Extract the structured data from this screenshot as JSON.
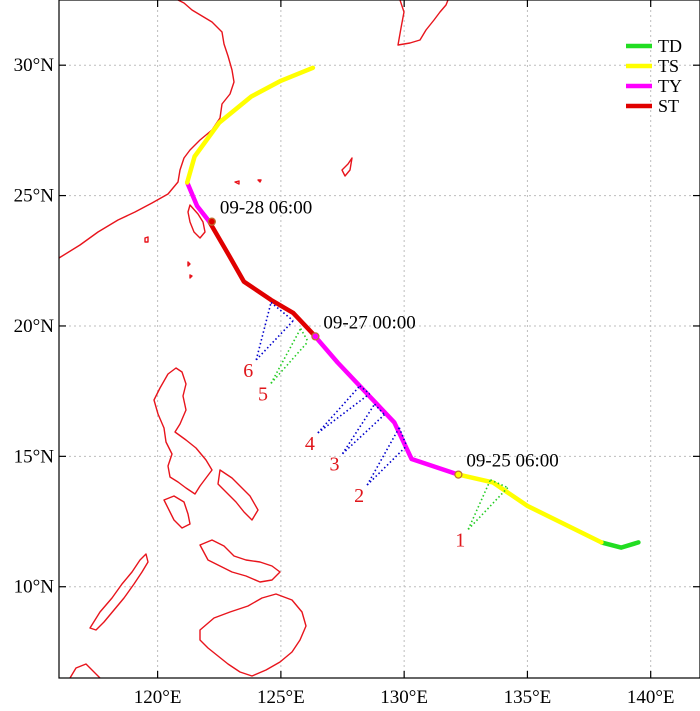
{
  "map": {
    "lon_range": [
      116,
      142
    ],
    "lat_range": [
      6.5,
      32.5
    ],
    "grid": true,
    "x_ticks": [
      {
        "value": 120,
        "label": "120°E"
      },
      {
        "value": 125,
        "label": "125°E"
      },
      {
        "value": 130,
        "label": "130°E"
      },
      {
        "value": 135,
        "label": "135°E"
      },
      {
        "value": 140,
        "label": "140°E"
      }
    ],
    "y_ticks": [
      {
        "value": 10,
        "label": "10°N"
      },
      {
        "value": 15,
        "label": "15°N"
      },
      {
        "value": 20,
        "label": "20°N"
      },
      {
        "value": 25,
        "label": "25°N"
      },
      {
        "value": 30,
        "label": "30°N"
      }
    ],
    "coast_color": "#e8141c"
  },
  "legend": {
    "placement": "top-right",
    "items": [
      {
        "label": "TD",
        "color": "#22dd22"
      },
      {
        "label": "TS",
        "color": "#ffff00"
      },
      {
        "label": "TY",
        "color": "#ff00ff"
      },
      {
        "label": "ST",
        "color": "#e00000"
      }
    ]
  },
  "track": {
    "segments": [
      {
        "category": "TD",
        "color": "#22dd22",
        "points": [
          [
            139.5,
            11.7
          ],
          [
            138.8,
            11.5
          ],
          [
            138.0,
            11.7
          ]
        ]
      },
      {
        "category": "TS",
        "color": "#ffff00",
        "points": [
          [
            138.0,
            11.7
          ],
          [
            136.5,
            12.4
          ],
          [
            135.0,
            13.1
          ],
          [
            133.6,
            14.0
          ],
          [
            132.2,
            14.3
          ]
        ]
      },
      {
        "category": "TY",
        "color": "#ff00ff",
        "points": [
          [
            132.2,
            14.3
          ],
          [
            130.3,
            14.9
          ],
          [
            129.6,
            16.3
          ],
          [
            128.5,
            17.4
          ],
          [
            127.3,
            18.6
          ],
          [
            126.3,
            19.7
          ]
        ]
      },
      {
        "category": "ST",
        "color": "#e00000",
        "points": [
          [
            126.3,
            19.7
          ],
          [
            125.5,
            20.5
          ],
          [
            124.6,
            21.0
          ],
          [
            123.5,
            21.7
          ],
          [
            122.9,
            22.7
          ],
          [
            122.1,
            24.0
          ]
        ]
      },
      {
        "category": "TY",
        "color": "#ff00ff",
        "points": [
          [
            122.1,
            24.0
          ],
          [
            121.6,
            24.6
          ],
          [
            121.2,
            25.5
          ]
        ]
      },
      {
        "category": "TS",
        "color": "#ffff00",
        "points": [
          [
            121.2,
            25.5
          ],
          [
            121.5,
            26.5
          ],
          [
            122.5,
            27.8
          ],
          [
            123.8,
            28.8
          ],
          [
            125.0,
            29.4
          ],
          [
            126.3,
            29.9
          ]
        ]
      }
    ],
    "markers": [
      {
        "lon": 132.2,
        "lat": 14.3,
        "label": "09-25 06:00",
        "color": "#ffff00"
      },
      {
        "lon": 126.4,
        "lat": 19.6,
        "label": "09-27 00:00",
        "color": "#ff00ff"
      },
      {
        "lon": 122.2,
        "lat": 24.0,
        "label": "09-28 06:00",
        "color": "#e00000"
      }
    ]
  },
  "observations": [
    {
      "id": "1",
      "origin": [
        132.6,
        12.2
      ],
      "targets": [
        [
          133.5,
          14.1
        ],
        [
          134.2,
          13.8
        ]
      ],
      "color": "#22cc22"
    },
    {
      "id": "2",
      "origin": [
        128.5,
        13.9
      ],
      "targets": [
        [
          129.8,
          16.1
        ],
        [
          130.1,
          15.4
        ]
      ],
      "color": "#0000cc"
    },
    {
      "id": "3",
      "origin": [
        127.5,
        15.1
      ],
      "targets": [
        [
          128.8,
          17.0
        ],
        [
          129.2,
          16.6
        ]
      ],
      "color": "#0000cc"
    },
    {
      "id": "4",
      "origin": [
        126.5,
        15.9
      ],
      "targets": [
        [
          128.2,
          17.7
        ],
        [
          128.6,
          17.4
        ]
      ],
      "color": "#0000cc"
    },
    {
      "id": "5",
      "origin": [
        124.6,
        17.8
      ],
      "targets": [
        [
          125.8,
          19.9
        ],
        [
          126.1,
          19.4
        ]
      ],
      "color": "#22cc22"
    },
    {
      "id": "6",
      "origin": [
        124.0,
        18.7
      ],
      "targets": [
        [
          124.6,
          20.9
        ],
        [
          125.5,
          20.2
        ]
      ],
      "color": "#0000cc"
    }
  ]
}
